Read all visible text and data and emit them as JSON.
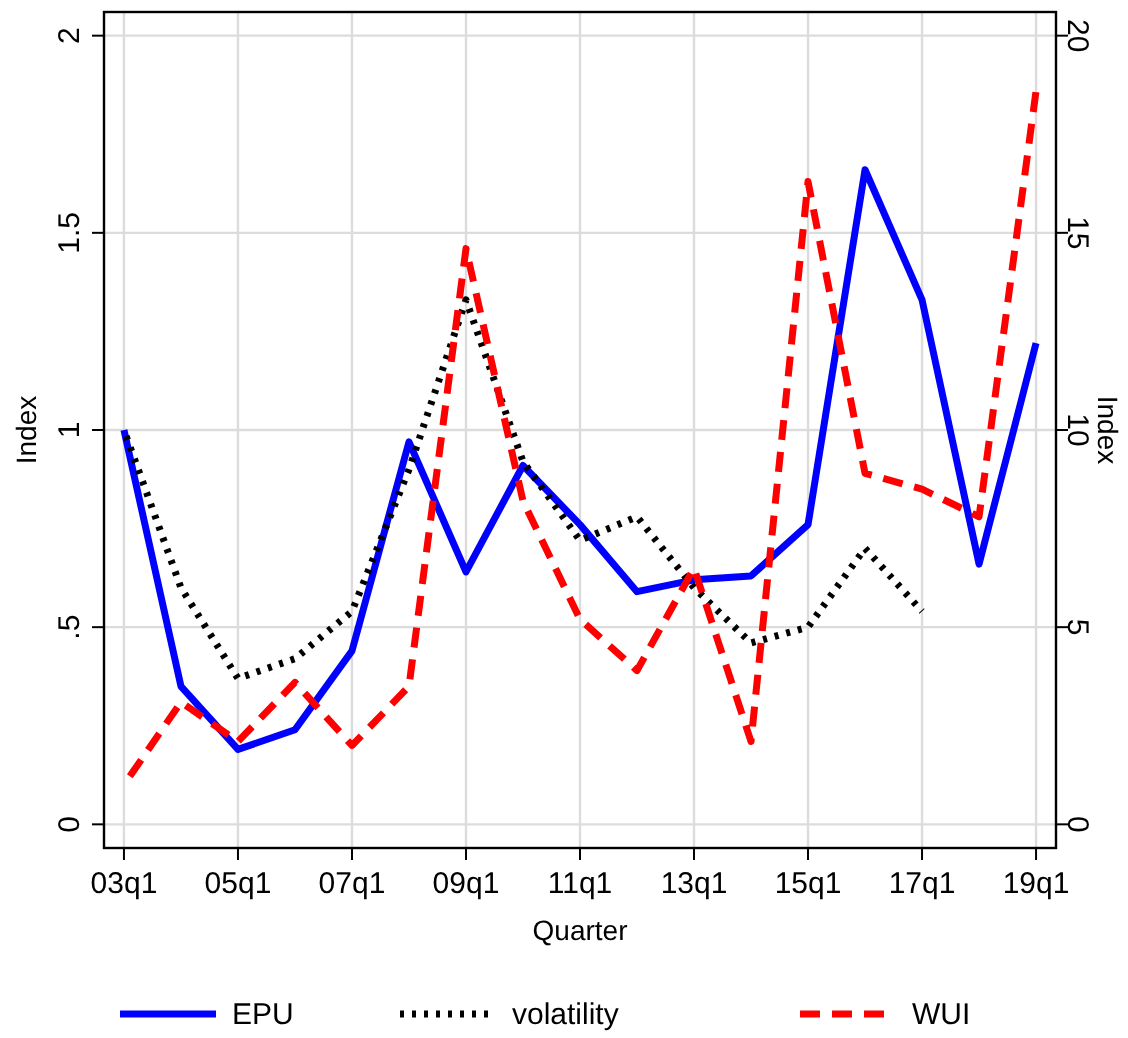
{
  "chart_data": {
    "type": "line",
    "xlabel": "Quarter",
    "ylabel": "Index",
    "y2label": "Index",
    "categories": [
      "03q1",
      null,
      "05q1",
      null,
      "07q1",
      null,
      "09q1",
      null,
      "11q1",
      null,
      "13q1",
      null,
      "15q1",
      null,
      "17q1",
      null,
      "19q1"
    ],
    "series": [
      {
        "name": "EPU",
        "color": "#0000ff",
        "line_style": "solid",
        "values": [
          1.0,
          0.35,
          0.19,
          0.24,
          0.44,
          0.97,
          0.64,
          0.91,
          0.76,
          0.59,
          0.62,
          0.63,
          0.76,
          1.66,
          1.33,
          0.66,
          1.22
        ]
      },
      {
        "name": "volatility",
        "color": "#000000",
        "line_style": "dotted",
        "values": [
          1.0,
          0.6,
          0.37,
          0.42,
          0.54,
          0.9,
          1.33,
          0.92,
          0.72,
          0.78,
          0.6,
          0.46,
          0.5,
          0.7,
          0.54,
          null,
          null
        ]
      },
      {
        "name": "WUI",
        "color": "#ff0000",
        "line_style": "dashed",
        "axis": "y2",
        "values": [
          1.0,
          3.1,
          2.1,
          3.6,
          2.0,
          3.5,
          14.6,
          8.2,
          5.2,
          3.9,
          6.5,
          2.1,
          16.3,
          8.9,
          8.5,
          7.8,
          18.6
        ]
      }
    ],
    "ylim": [
      -0.06,
      2.06
    ],
    "yticks": [
      0,
      {
        "value": 0.5,
        "label": ".5"
      },
      1,
      1.5,
      2
    ],
    "y2lim": [
      -0.6,
      20.6
    ],
    "y2ticks": [
      0,
      5,
      10,
      15,
      20
    ],
    "grid": true,
    "legend": "bottom"
  }
}
